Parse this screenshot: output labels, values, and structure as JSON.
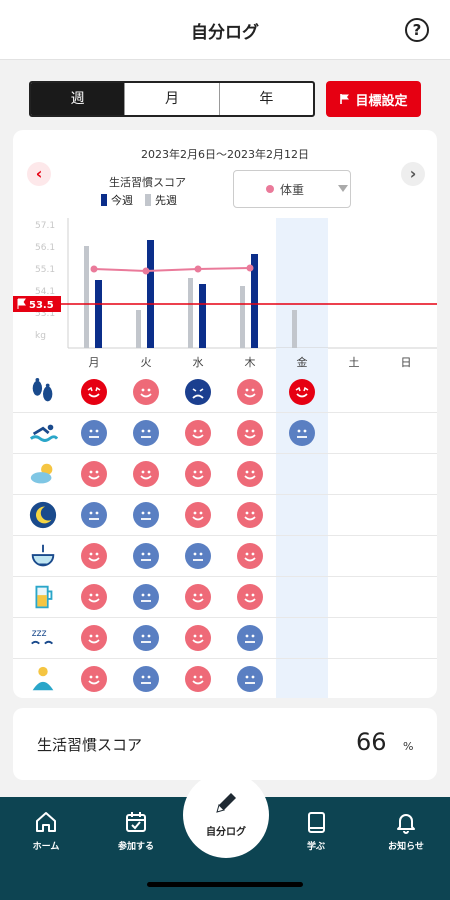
{
  "header": {
    "title": "自分ログ",
    "help_label": "?"
  },
  "period_tabs": [
    {
      "label": "週",
      "active": true
    },
    {
      "label": "月",
      "active": false
    },
    {
      "label": "年",
      "active": false
    }
  ],
  "goal_button": {
    "label": "目標設定"
  },
  "card": {
    "date_range": "2023年2月6日～2023年2月12日",
    "prev_arrow": "‹",
    "next_arrow": "›",
    "legend_title": "生活習慣スコア",
    "legend_this_week": "今週",
    "legend_last_week": "先週",
    "metric_select": "体重"
  },
  "chart_data": {
    "type": "bar",
    "categories": [
      "月",
      "火",
      "水",
      "木",
      "金",
      "土",
      "日"
    ],
    "y_ticks": [
      "57.1",
      "56.1",
      "55.1",
      "54.1",
      "53.1",
      "kg"
    ],
    "series": [
      {
        "name": "今週",
        "values": [
          68,
          108,
          64,
          94,
          null,
          null,
          null
        ]
      },
      {
        "name": "先週",
        "values": [
          102,
          38,
          70,
          62,
          38,
          null,
          null
        ]
      }
    ],
    "weight_line": [
      55.2,
      55.0,
      55.2,
      55.3,
      null,
      null,
      null
    ],
    "goal_value": "53.5",
    "highlight_day": "金",
    "colors": {
      "this_week": "#0b2e8a",
      "last_week": "#c2c6cc",
      "weight": "#ea7a9a",
      "goal": "#e60012",
      "highlight": "#eaf2fc"
    }
  },
  "habit_rows": [
    {
      "icon": "walking-icon",
      "faces": [
        "great",
        "good",
        "bad",
        "good",
        "great",
        null,
        null
      ]
    },
    {
      "icon": "swimming-icon",
      "faces": [
        "neutral",
        "neutral",
        "good",
        "good",
        "neutral",
        null,
        null
      ]
    },
    {
      "icon": "weather-icon",
      "faces": [
        "good",
        "good",
        "good",
        "good",
        null,
        null,
        null
      ]
    },
    {
      "icon": "sleep-moon-icon",
      "faces": [
        "neutral",
        "neutral",
        "good",
        "good",
        null,
        null,
        null
      ]
    },
    {
      "icon": "meal-bowl-icon",
      "faces": [
        "good",
        "neutral",
        "neutral",
        "good",
        null,
        null,
        null
      ]
    },
    {
      "icon": "drink-glass-icon",
      "faces": [
        "good",
        "neutral",
        "good",
        "good",
        null,
        null,
        null
      ]
    },
    {
      "icon": "sleep-zzz-icon",
      "faces": [
        "good",
        "neutral",
        "good",
        "neutral",
        null,
        null,
        null
      ]
    },
    {
      "icon": "person-icon",
      "faces": [
        "good",
        "neutral",
        "good",
        "neutral",
        null,
        null,
        null
      ]
    }
  ],
  "face_colors": {
    "great": "#e60012",
    "good": "#ee6a78",
    "neutral": "#5a7fc2",
    "bad": "#1b3f8f"
  },
  "score": {
    "label": "生活習慣スコア",
    "value": "66",
    "unit": "%"
  },
  "bottom_nav": [
    {
      "label": "ホーム",
      "icon": "home-icon"
    },
    {
      "label": "参加する",
      "icon": "calendar-icon"
    },
    {
      "label": "学ぶ",
      "icon": "book-icon"
    },
    {
      "label": "お知らせ",
      "icon": "bell-icon"
    }
  ],
  "center_button": {
    "label": "自分ログ",
    "icon": "pencil-icon"
  }
}
